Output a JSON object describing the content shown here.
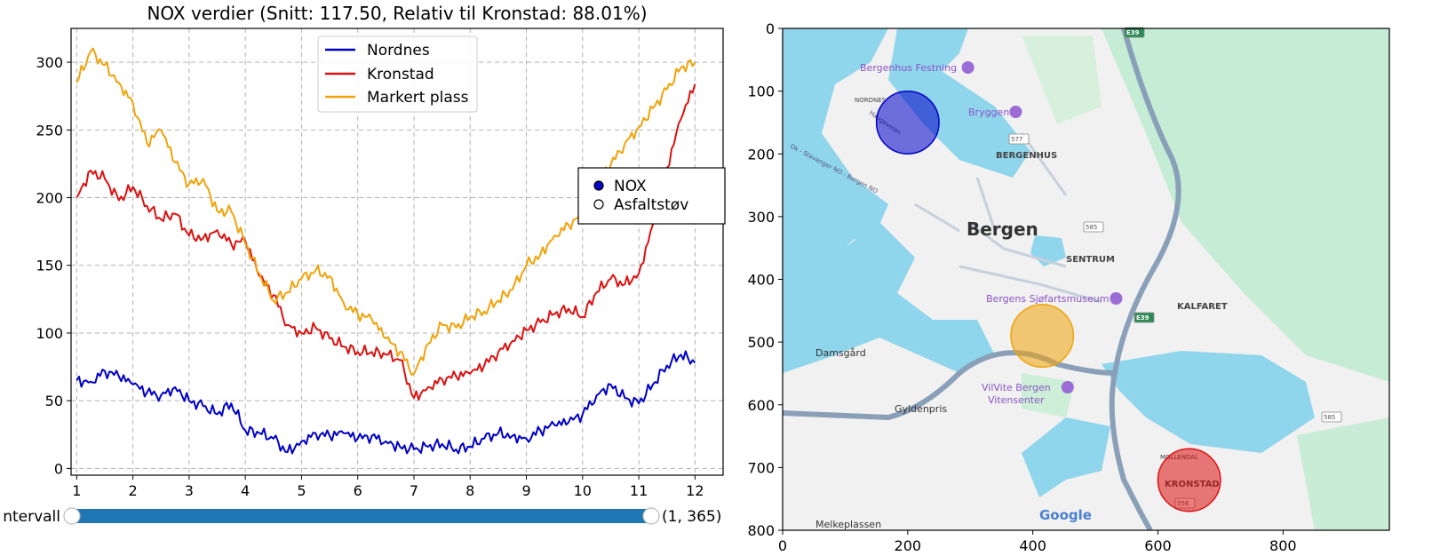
{
  "colors": {
    "nordnes": "#0000c8",
    "kronstad": "#dd1111",
    "markert": "#f0a30a",
    "slider": "#1f77b4",
    "water": "#8fd5ec",
    "land": "#f1f1f1",
    "park": "#bfe9cf",
    "road": "#8aa0b8"
  },
  "chart_data": [
    {
      "type": "line",
      "title": "NOX verdier (Snitt: 117.50, Relativ til Kronstad: 88.01%)",
      "xlabel": "",
      "ylabel": "",
      "xlim": [
        0.9,
        12.5
      ],
      "ylim": [
        -5,
        325
      ],
      "xticks": [
        "1",
        "2",
        "3",
        "4",
        "5",
        "6",
        "7",
        "8",
        "9",
        "10",
        "11",
        "12"
      ],
      "yticks": [
        "0",
        "50",
        "100",
        "150",
        "200",
        "250",
        "300"
      ],
      "grid": true,
      "legend_position": "top-center",
      "series": [
        {
          "name": "Nordnes",
          "color_key": "nordnes",
          "x": [
            1.0,
            1.25,
            1.5,
            1.75,
            2.0,
            2.25,
            2.5,
            2.75,
            3.0,
            3.25,
            3.5,
            3.75,
            4.0,
            4.25,
            4.5,
            4.75,
            5.0,
            5.25,
            5.5,
            5.75,
            6.0,
            6.25,
            6.5,
            6.75,
            7.0,
            7.25,
            7.5,
            7.75,
            8.0,
            8.25,
            8.5,
            8.75,
            9.0,
            9.25,
            9.5,
            9.75,
            10.0,
            10.25,
            10.5,
            10.75,
            11.0,
            11.25,
            11.5,
            11.75,
            12.0
          ],
          "y": [
            65,
            64,
            72,
            68,
            62,
            56,
            54,
            60,
            50,
            46,
            40,
            48,
            28,
            26,
            22,
            12,
            20,
            26,
            24,
            26,
            22,
            24,
            20,
            16,
            14,
            16,
            18,
            14,
            16,
            22,
            26,
            24,
            22,
            28,
            32,
            34,
            40,
            54,
            62,
            52,
            48,
            62,
            76,
            84,
            78
          ]
        },
        {
          "name": "Kronstad",
          "color_key": "kronstad",
          "x": [
            1.0,
            1.25,
            1.5,
            1.75,
            2.0,
            2.25,
            2.5,
            2.75,
            3.0,
            3.25,
            3.5,
            3.75,
            4.0,
            4.25,
            4.5,
            4.75,
            5.0,
            5.25,
            5.5,
            5.75,
            6.0,
            6.25,
            6.5,
            6.75,
            7.0,
            7.25,
            7.5,
            7.75,
            8.0,
            8.25,
            8.5,
            8.75,
            9.0,
            9.25,
            9.5,
            9.75,
            10.0,
            10.25,
            10.5,
            10.75,
            11.0,
            11.25,
            11.5,
            11.75,
            12.0
          ],
          "y": [
            200,
            220,
            214,
            198,
            208,
            194,
            184,
            188,
            172,
            170,
            176,
            166,
            168,
            142,
            128,
            106,
            100,
            104,
            96,
            90,
            86,
            86,
            84,
            80,
            52,
            60,
            66,
            68,
            70,
            76,
            86,
            94,
            102,
            108,
            114,
            118,
            112,
            130,
            140,
            136,
            144,
            180,
            222,
            258,
            284
          ]
        },
        {
          "name": "Markert plass",
          "color_key": "markert",
          "x": [
            1.0,
            1.25,
            1.5,
            1.75,
            2.0,
            2.25,
            2.5,
            2.75,
            3.0,
            3.25,
            3.5,
            3.75,
            4.0,
            4.25,
            4.5,
            4.75,
            5.0,
            5.25,
            5.5,
            5.75,
            6.0,
            6.25,
            6.5,
            6.75,
            7.0,
            7.25,
            7.5,
            7.75,
            8.0,
            8.25,
            8.5,
            8.75,
            9.0,
            9.25,
            9.5,
            9.75,
            10.0,
            10.25,
            10.5,
            10.75,
            11.0,
            11.25,
            11.5,
            11.75,
            12.0
          ],
          "y": [
            285,
            308,
            298,
            285,
            270,
            240,
            250,
            226,
            210,
            214,
            190,
            190,
            166,
            144,
            124,
            130,
            140,
            146,
            142,
            122,
            114,
            110,
            96,
            86,
            70,
            92,
            106,
            104,
            112,
            116,
            124,
            132,
            150,
            158,
            172,
            180,
            188,
            210,
            224,
            240,
            252,
            266,
            280,
            296,
            300
          ]
        }
      ],
      "marker_legend": [
        {
          "label": "NOX",
          "style": "filled"
        },
        {
          "label": "Asfaltstøv",
          "style": "open"
        }
      ],
      "slider": {
        "label": "ntervall",
        "value_text": "(1, 365)",
        "min": 1,
        "max": 365,
        "low": 1,
        "high": 365
      }
    },
    {
      "type": "scatter",
      "title": "",
      "xlabel": "",
      "ylabel": "",
      "xlim": [
        0,
        970
      ],
      "ylim": [
        800,
        0
      ],
      "xticks": [
        "0",
        "200",
        "400",
        "600",
        "800"
      ],
      "yticks": [
        "0",
        "100",
        "200",
        "300",
        "400",
        "500",
        "600",
        "700",
        "800"
      ],
      "grid": false,
      "background": "map image",
      "points": [
        {
          "x": 200,
          "y": 150,
          "r": 50,
          "color_key": "nordnes"
        },
        {
          "x": 415,
          "y": 490,
          "r": 50,
          "color_key": "markert"
        },
        {
          "x": 650,
          "y": 720,
          "r": 50,
          "color_key": "kronstad"
        }
      ]
    }
  ],
  "map_labels": [
    {
      "id": "festning",
      "text": "Bergenhus Festning",
      "kind": "poi"
    },
    {
      "id": "bryggen",
      "text": "Bryggen",
      "kind": "poi"
    },
    {
      "id": "nordnes",
      "text": "NORDNES",
      "kind": "district-small"
    },
    {
      "id": "haugeveien",
      "text": "Haugeveien",
      "kind": "street"
    },
    {
      "id": "bergenhus",
      "text": "BERGENHUS",
      "kind": "district"
    },
    {
      "id": "ferry",
      "text": "Dk - Stavanger NO - Bergen NO",
      "kind": "ferry"
    },
    {
      "id": "bergen",
      "text": "Bergen",
      "kind": "city"
    },
    {
      "id": "sentrum",
      "text": "SENTRUM",
      "kind": "district"
    },
    {
      "id": "sjofart",
      "text": "Bergens Sjøfartsmuseum",
      "kind": "poi"
    },
    {
      "id": "kalfaret",
      "text": "KALFARET",
      "kind": "district"
    },
    {
      "id": "damsgard",
      "text": "Damsgård",
      "kind": "place"
    },
    {
      "id": "vilvite1",
      "text": "VilVite Bergen",
      "kind": "poi"
    },
    {
      "id": "vilvite2",
      "text": "Vitensenter",
      "kind": "poi-cont"
    },
    {
      "id": "gyldenpris",
      "text": "Gyldenpris",
      "kind": "place"
    },
    {
      "id": "mollendal",
      "text": "MØLLENDAL",
      "kind": "district-small"
    },
    {
      "id": "kronstad",
      "text": "KRONSTAD",
      "kind": "district"
    },
    {
      "id": "melkeplassen",
      "text": "Melkeplassen",
      "kind": "place"
    },
    {
      "id": "google",
      "text": "Google",
      "kind": "logo"
    },
    {
      "id": "r577",
      "text": "577",
      "kind": "shield"
    },
    {
      "id": "r585a",
      "text": "585",
      "kind": "shield"
    },
    {
      "id": "r585b",
      "text": "585",
      "kind": "shield"
    },
    {
      "id": "e39a",
      "text": "E39",
      "kind": "eshield"
    },
    {
      "id": "e39b",
      "text": "E39",
      "kind": "eshield"
    },
    {
      "id": "r556",
      "text": "556",
      "kind": "shield"
    }
  ]
}
